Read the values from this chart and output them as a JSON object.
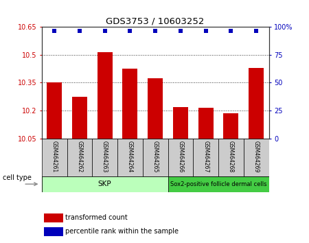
{
  "title": "GDS3753 / 10603252",
  "samples": [
    "GSM464261",
    "GSM464262",
    "GSM464263",
    "GSM464264",
    "GSM464265",
    "GSM464266",
    "GSM464267",
    "GSM464268",
    "GSM464269"
  ],
  "bar_values": [
    10.35,
    10.275,
    10.515,
    10.425,
    10.375,
    10.22,
    10.215,
    10.185,
    10.43
  ],
  "percentile_values": [
    96,
    96,
    96,
    96,
    96,
    96,
    96,
    96,
    96
  ],
  "bar_color": "#cc0000",
  "percentile_color": "#0000bb",
  "ylim_left": [
    10.05,
    10.65
  ],
  "ylim_right": [
    0,
    100
  ],
  "yticks_left": [
    10.05,
    10.2,
    10.35,
    10.5,
    10.65
  ],
  "ytick_labels_left": [
    "10.05",
    "10.2",
    "10.35",
    "10.5",
    "10.65"
  ],
  "yticks_right": [
    0,
    25,
    50,
    75,
    100
  ],
  "ytick_labels_right": [
    "0",
    "25",
    "50",
    "75",
    "100%"
  ],
  "cell_type_label": "cell type",
  "group1_label": "SKP",
  "group2_label": "Sox2-positive follicle dermal cells",
  "group1_indices": [
    0,
    1,
    2,
    3,
    4
  ],
  "group2_indices": [
    5,
    6,
    7,
    8
  ],
  "group1_color": "#bbffbb",
  "group2_color": "#44cc44",
  "sample_box_color": "#cccccc",
  "legend_bar_label": "transformed count",
  "legend_pct_label": "percentile rank within the sample",
  "background_color": "#ffffff",
  "plot_bg_color": "#ffffff",
  "hgrid_vals": [
    10.2,
    10.35,
    10.5
  ],
  "hgrid_color": "#333333",
  "border_color": "#333333"
}
